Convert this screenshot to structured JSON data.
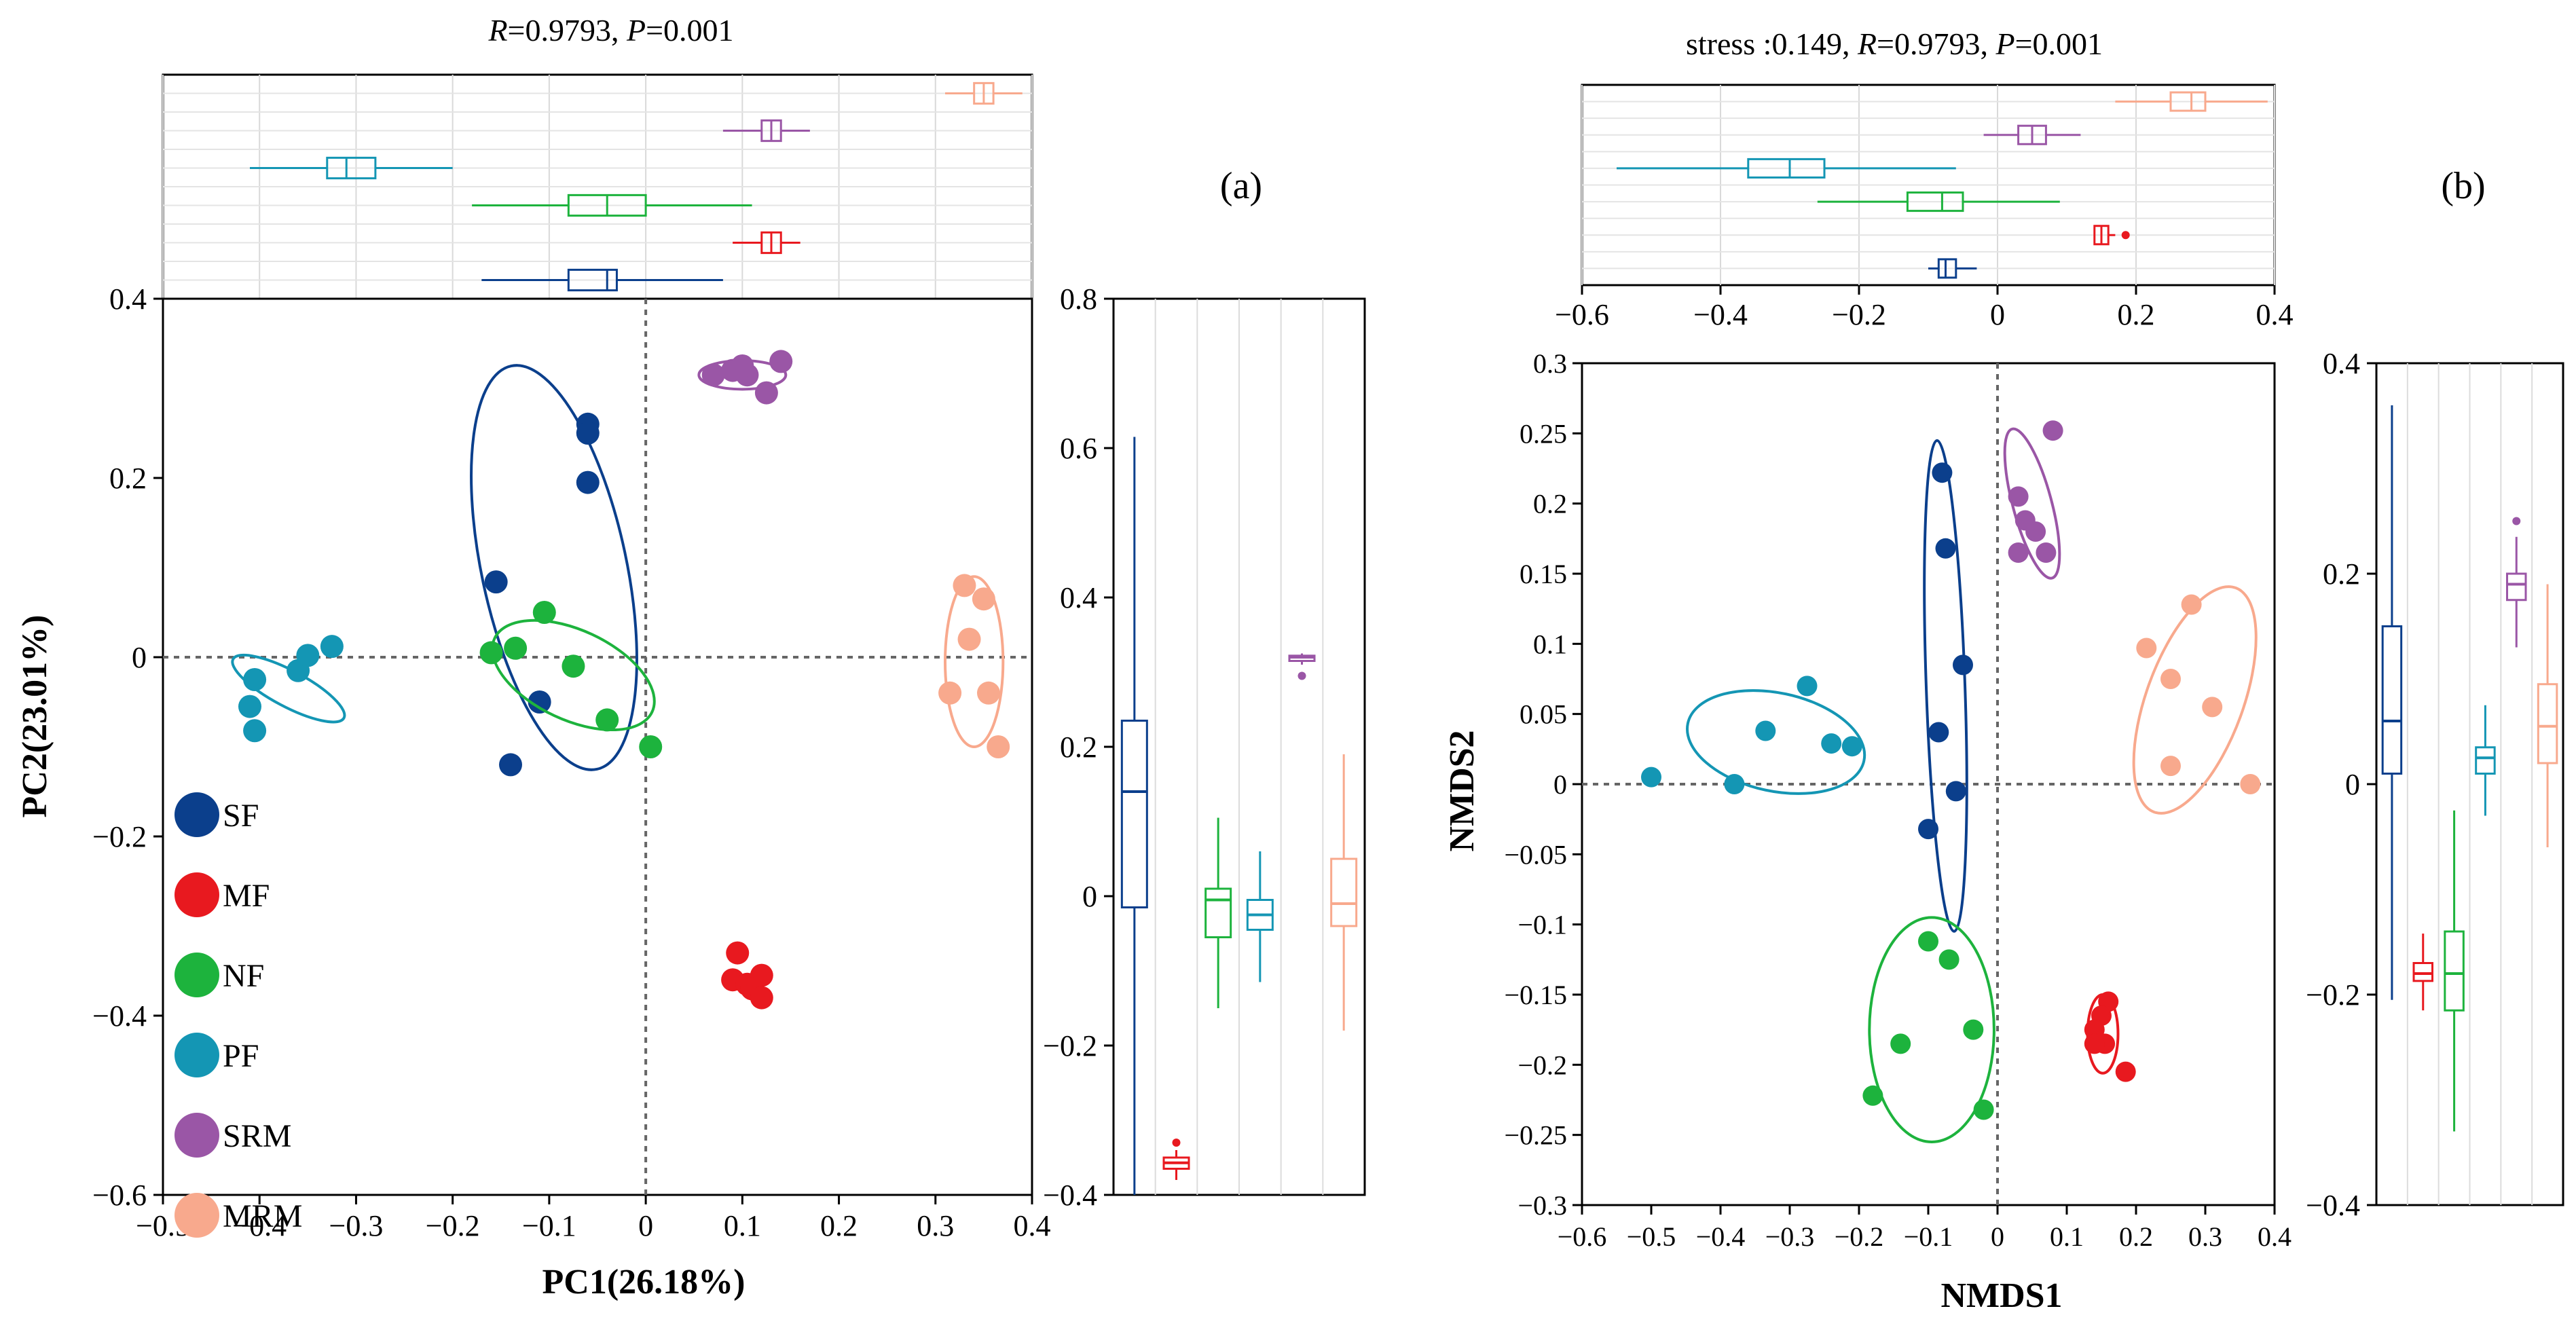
{
  "figure": {
    "groups": [
      {
        "name": "SF",
        "color": "#0b3f8c"
      },
      {
        "name": "MF",
        "color": "#e8191f"
      },
      {
        "name": "NF",
        "color": "#1db33d"
      },
      {
        "name": "PF",
        "color": "#1496b4"
      },
      {
        "name": "SRM",
        "color": "#9a56a6"
      },
      {
        "name": "MRM",
        "color": "#f8a98d"
      }
    ]
  },
  "chart_data": [
    {
      "panel": "(a)",
      "type": "scatter",
      "method": "PCoA",
      "title_prefix": "R=0.9793, P=0.001",
      "stats": {
        "R_label": "R",
        "R": "=0.9793, ",
        "P_label": "P",
        "P": "=0.001"
      },
      "xlabel": "PC1(26.18%)",
      "ylabel": "PC2(23.01%)",
      "xlim": [
        -0.5,
        0.4
      ],
      "ylim": [
        -0.6,
        0.4
      ],
      "xticks": [
        -0.5,
        -0.4,
        -0.3,
        -0.2,
        -0.1,
        0,
        0.1,
        0.2,
        0.3,
        0.4
      ],
      "xtick_labels": [
        "−0.5",
        "−0.4",
        "−0.3",
        "−0.2",
        "−0.1",
        "0",
        "0.1",
        "0.2",
        "0.3",
        "0.4"
      ],
      "yticks": [
        -0.6,
        -0.4,
        -0.2,
        0,
        0.2,
        0.4
      ],
      "ytick_labels": [
        "−0.6",
        "−0.4",
        "−0.2",
        "0",
        "0.2",
        "0.4"
      ],
      "legend": [
        "SF",
        "MF",
        "NF",
        "PF",
        "SRM",
        "MRM"
      ],
      "legend_position": "bottom-left",
      "series": [
        {
          "name": "SF",
          "points": [
            [
              -0.06,
              0.26
            ],
            [
              -0.06,
              0.25
            ],
            [
              -0.06,
              0.195
            ],
            [
              -0.155,
              0.084
            ],
            [
              -0.11,
              -0.05
            ],
            [
              -0.14,
              -0.12
            ]
          ],
          "ellipse": {
            "cx": -0.095,
            "cy": 0.1,
            "rx": 0.075,
            "ry": 0.23,
            "rot": 12
          }
        },
        {
          "name": "MF",
          "points": [
            [
              0.095,
              -0.33
            ],
            [
              0.09,
              -0.36
            ],
            [
              0.105,
              -0.365
            ],
            [
              0.12,
              -0.355
            ],
            [
              0.11,
              -0.37
            ],
            [
              0.12,
              -0.38
            ]
          ],
          "ellipse": null
        },
        {
          "name": "NF",
          "points": [
            [
              -0.16,
              0.005
            ],
            [
              -0.135,
              0.01
            ],
            [
              -0.105,
              0.05
            ],
            [
              -0.075,
              -0.01
            ],
            [
              -0.04,
              -0.07
            ],
            [
              0.005,
              -0.1
            ]
          ],
          "ellipse": {
            "cx": -0.075,
            "cy": -0.02,
            "rx": 0.09,
            "ry": 0.05,
            "rot": -25
          }
        },
        {
          "name": "PF",
          "points": [
            [
              -0.405,
              -0.082
            ],
            [
              -0.41,
              -0.055
            ],
            [
              -0.405,
              -0.025
            ],
            [
              -0.36,
              -0.015
            ],
            [
              -0.35,
              0.002
            ],
            [
              -0.325,
              0.012
            ]
          ],
          "ellipse": {
            "cx": -0.37,
            "cy": -0.035,
            "rx": 0.065,
            "ry": 0.02,
            "rot": -28
          }
        },
        {
          "name": "SRM",
          "points": [
            [
              0.07,
              0.315
            ],
            [
              0.09,
              0.32
            ],
            [
              0.105,
              0.315
            ],
            [
              0.14,
              0.33
            ],
            [
              0.125,
              0.295
            ],
            [
              0.1,
              0.325
            ]
          ],
          "ellipse": {
            "cx": 0.1,
            "cy": 0.315,
            "rx": 0.045,
            "ry": 0.016,
            "rot": 0
          }
        },
        {
          "name": "MRM",
          "points": [
            [
              0.33,
              0.08
            ],
            [
              0.35,
              0.065
            ],
            [
              0.335,
              0.02
            ],
            [
              0.315,
              -0.04
            ],
            [
              0.355,
              -0.04
            ],
            [
              0.365,
              -0.1
            ]
          ],
          "ellipse": {
            "cx": 0.34,
            "cy": -0.005,
            "rx": 0.03,
            "ry": 0.095,
            "rot": 0
          }
        }
      ],
      "top_boxplots": [
        {
          "name": "MRM",
          "min": 0.31,
          "q1": 0.34,
          "median": 0.35,
          "q3": 0.36,
          "max": 0.39,
          "outliers": []
        },
        {
          "name": "SRM",
          "min": 0.08,
          "q1": 0.12,
          "median": 0.13,
          "q3": 0.14,
          "max": 0.17,
          "outliers": []
        },
        {
          "name": "PF",
          "min": -0.41,
          "q1": -0.33,
          "median": -0.31,
          "q3": -0.28,
          "max": -0.2,
          "outliers": []
        },
        {
          "name": "NF",
          "min": -0.18,
          "q1": -0.08,
          "median": -0.04,
          "q3": 0.0,
          "max": 0.11,
          "outliers": []
        },
        {
          "name": "MF",
          "min": 0.09,
          "q1": 0.12,
          "median": 0.13,
          "q3": 0.14,
          "max": 0.16,
          "outliers": []
        },
        {
          "name": "SF",
          "min": -0.17,
          "q1": -0.08,
          "median": -0.04,
          "q3": -0.03,
          "max": 0.08,
          "outliers": []
        }
      ],
      "right_boxplots": {
        "ylim": [
          -0.4,
          0.8
        ],
        "yticks": [
          -0.4,
          -0.2,
          0,
          0.2,
          0.4,
          0.6,
          0.8
        ],
        "ytick_labels": [
          "−0.4",
          "−0.2",
          "0",
          "0.2",
          "0.4",
          "0.6",
          "0.8"
        ],
        "boxes": [
          {
            "name": "SF",
            "min": -0.4,
            "q1": -0.015,
            "median": 0.14,
            "q3": 0.235,
            "max": 0.615,
            "outliers": []
          },
          {
            "name": "MF",
            "min": -0.38,
            "q1": -0.365,
            "median": -0.357,
            "q3": -0.35,
            "max": -0.34,
            "outliers": [
              -0.33
            ]
          },
          {
            "name": "NF",
            "min": -0.15,
            "q1": -0.055,
            "median": -0.005,
            "q3": 0.01,
            "max": 0.105,
            "outliers": []
          },
          {
            "name": "PF",
            "min": -0.115,
            "q1": -0.045,
            "median": -0.025,
            "q3": -0.005,
            "max": 0.06,
            "outliers": []
          },
          {
            "name": "SRM",
            "min": 0.31,
            "q1": 0.315,
            "median": 0.32,
            "q3": 0.322,
            "max": 0.325,
            "outliers": [
              0.295
            ]
          },
          {
            "name": "MRM",
            "min": -0.18,
            "q1": -0.04,
            "median": -0.01,
            "q3": 0.05,
            "max": 0.19,
            "outliers": []
          }
        ]
      }
    },
    {
      "panel": "(b)",
      "type": "scatter",
      "method": "NMDS",
      "title_prefix": "stress :0.149, R=0.9793, P=0.001",
      "stats": {
        "stress": "stress :0.149, ",
        "R_label": "R",
        "R": "=0.9793, ",
        "P_label": "P",
        "P": "=0.001"
      },
      "xlabel": "NMDS1",
      "ylabel": "NMDS2",
      "xlim": [
        -0.6,
        0.4
      ],
      "ylim": [
        -0.3,
        0.3
      ],
      "xticks": [
        -0.6,
        -0.5,
        -0.4,
        -0.3,
        -0.2,
        -0.1,
        0,
        0.1,
        0.2,
        0.3,
        0.4
      ],
      "xtick_labels": [
        "−0.6",
        "−0.5",
        "−0.4",
        "−0.3",
        "−0.2",
        "−0.1",
        "0",
        "0.1",
        "0.2",
        "0.3",
        "0.4"
      ],
      "yticks": [
        -0.3,
        -0.25,
        -0.2,
        -0.15,
        -0.1,
        -0.05,
        0,
        0.05,
        0.1,
        0.15,
        0.2,
        0.25,
        0.3
      ],
      "ytick_labels": [
        "−0.3",
        "−0.25",
        "−0.2",
        "−0.15",
        "−0.1",
        "−0.05",
        "0",
        "0.05",
        "0.1",
        "0.15",
        "0.2",
        "0.25",
        "0.3"
      ],
      "series": [
        {
          "name": "SF",
          "points": [
            [
              -0.08,
              0.222
            ],
            [
              -0.075,
              0.168
            ],
            [
              -0.05,
              0.085
            ],
            [
              -0.085,
              0.037
            ],
            [
              -0.06,
              -0.005
            ],
            [
              -0.1,
              -0.032
            ]
          ],
          "ellipse": {
            "cx": -0.075,
            "cy": 0.07,
            "rx": 0.028,
            "ry": 0.175,
            "rot": 2
          }
        },
        {
          "name": "MF",
          "points": [
            [
              0.16,
              -0.155
            ],
            [
              0.15,
              -0.165
            ],
            [
              0.14,
              -0.175
            ],
            [
              0.155,
              -0.185
            ],
            [
              0.14,
              -0.185
            ],
            [
              0.185,
              -0.205
            ]
          ],
          "ellipse": {
            "cx": 0.152,
            "cy": -0.178,
            "rx": 0.022,
            "ry": 0.028,
            "rot": 0
          }
        },
        {
          "name": "NF",
          "points": [
            [
              -0.1,
              -0.112
            ],
            [
              -0.07,
              -0.125
            ],
            [
              -0.14,
              -0.185
            ],
            [
              -0.035,
              -0.175
            ],
            [
              -0.18,
              -0.222
            ],
            [
              -0.02,
              -0.232
            ]
          ],
          "ellipse": {
            "cx": -0.095,
            "cy": -0.175,
            "rx": 0.09,
            "ry": 0.08,
            "rot": 0
          }
        },
        {
          "name": "PF",
          "points": [
            [
              -0.5,
              0.005
            ],
            [
              -0.38,
              0.0
            ],
            [
              -0.335,
              0.038
            ],
            [
              -0.275,
              0.07
            ],
            [
              -0.24,
              0.029
            ],
            [
              -0.21,
              0.027
            ]
          ],
          "ellipse": {
            "cx": -0.32,
            "cy": 0.03,
            "rx": 0.13,
            "ry": 0.035,
            "rot": -12
          }
        },
        {
          "name": "SRM",
          "points": [
            [
              0.08,
              0.252
            ],
            [
              0.03,
              0.205
            ],
            [
              0.04,
              0.188
            ],
            [
              0.055,
              0.18
            ],
            [
              0.03,
              0.165
            ],
            [
              0.07,
              0.165
            ]
          ],
          "ellipse": {
            "cx": 0.05,
            "cy": 0.2,
            "rx": 0.028,
            "ry": 0.055,
            "rot": 15
          }
        },
        {
          "name": "MRM",
          "points": [
            [
              0.28,
              0.128
            ],
            [
              0.215,
              0.097
            ],
            [
              0.25,
              0.075
            ],
            [
              0.31,
              0.055
            ],
            [
              0.25,
              0.013
            ],
            [
              0.365,
              0.0
            ]
          ],
          "ellipse": {
            "cx": 0.285,
            "cy": 0.06,
            "rx": 0.07,
            "ry": 0.085,
            "rot": -20
          }
        }
      ],
      "top_boxplots": {
        "xticks": [
          -0.6,
          -0.4,
          -0.2,
          0,
          0.2,
          0.4
        ],
        "xtick_labels": [
          "−0.6",
          "−0.4",
          "−0.2",
          "0",
          "0.2",
          "0.4"
        ],
        "boxes": [
          {
            "name": "MRM",
            "min": 0.17,
            "q1": 0.25,
            "median": 0.28,
            "q3": 0.3,
            "max": 0.39,
            "outliers": []
          },
          {
            "name": "SRM",
            "min": -0.02,
            "q1": 0.03,
            "median": 0.05,
            "q3": 0.07,
            "max": 0.12,
            "outliers": []
          },
          {
            "name": "PF",
            "min": -0.55,
            "q1": -0.36,
            "median": -0.3,
            "q3": -0.25,
            "max": -0.06,
            "outliers": []
          },
          {
            "name": "NF",
            "min": -0.26,
            "q1": -0.13,
            "median": -0.08,
            "q3": -0.05,
            "max": 0.09,
            "outliers": []
          },
          {
            "name": "MF",
            "min": 0.14,
            "q1": 0.14,
            "median": 0.15,
            "q3": 0.16,
            "max": 0.17,
            "outliers": [
              0.185
            ]
          },
          {
            "name": "SF",
            "min": -0.1,
            "q1": -0.085,
            "median": -0.075,
            "q3": -0.06,
            "max": -0.03,
            "outliers": []
          }
        ]
      },
      "right_boxplots": {
        "ylim": [
          -0.4,
          0.4
        ],
        "yticks": [
          -0.4,
          -0.2,
          0,
          0.2,
          0.4
        ],
        "ytick_labels": [
          "−0.4",
          "−0.2",
          "0",
          "0.2",
          "0.4"
        ],
        "boxes": [
          {
            "name": "SF",
            "min": -0.205,
            "q1": 0.01,
            "median": 0.06,
            "q3": 0.15,
            "max": 0.36,
            "outliers": []
          },
          {
            "name": "MF",
            "min": -0.215,
            "q1": -0.187,
            "median": -0.18,
            "q3": -0.17,
            "max": -0.142,
            "outliers": []
          },
          {
            "name": "NF",
            "min": -0.33,
            "q1": -0.215,
            "median": -0.18,
            "q3": -0.14,
            "max": -0.025,
            "outliers": []
          },
          {
            "name": "PF",
            "min": -0.03,
            "q1": 0.01,
            "median": 0.025,
            "q3": 0.035,
            "max": 0.075,
            "outliers": []
          },
          {
            "name": "SRM",
            "min": 0.13,
            "q1": 0.175,
            "median": 0.19,
            "q3": 0.2,
            "max": 0.235,
            "outliers": [
              0.25
            ]
          },
          {
            "name": "MRM",
            "min": -0.06,
            "q1": 0.02,
            "median": 0.055,
            "q3": 0.095,
            "max": 0.19,
            "outliers": []
          }
        ]
      }
    }
  ]
}
